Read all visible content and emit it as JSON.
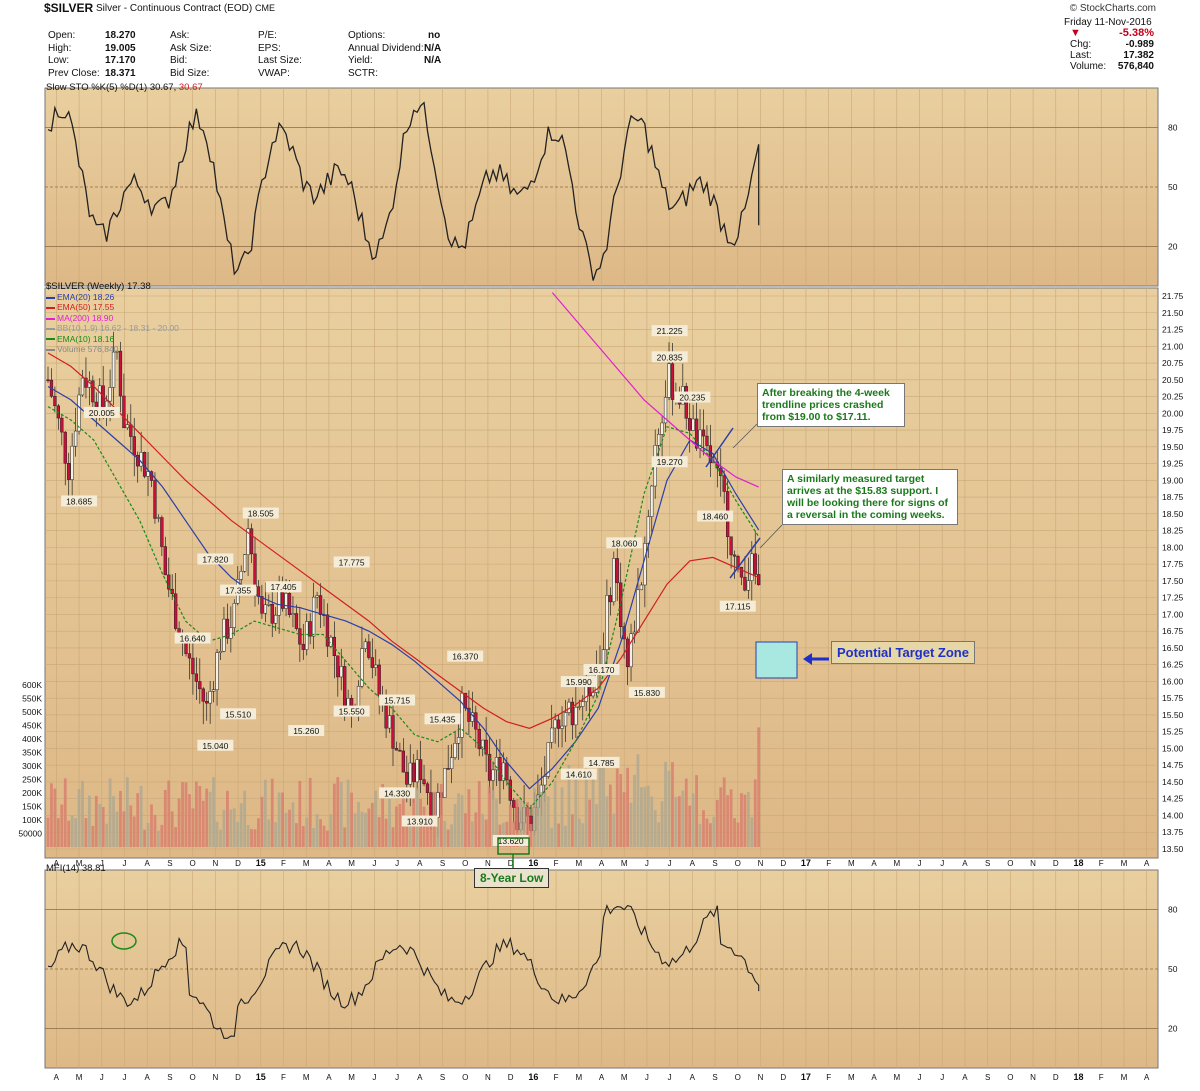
{
  "header": {
    "symbol": "$SILVER",
    "name": "Silver - Continuous Contract (EOD)",
    "exchange": "CME",
    "source": "© StockCharts.com"
  },
  "quote": {
    "rows": [
      [
        {
          "k": "Open:",
          "v": "18.270"
        },
        {
          "k": "Ask:",
          "v": ""
        },
        {
          "k": "P/E:",
          "v": ""
        },
        {
          "k": "Options:",
          "v": "no"
        }
      ],
      [
        {
          "k": "High:",
          "v": "19.005"
        },
        {
          "k": "Ask Size:",
          "v": ""
        },
        {
          "k": "EPS:",
          "v": ""
        },
        {
          "k": "Annual Dividend:",
          "v": "N/A"
        }
      ],
      [
        {
          "k": "Low:",
          "v": "17.170"
        },
        {
          "k": "Bid:",
          "v": ""
        },
        {
          "k": "Last Size:",
          "v": ""
        },
        {
          "k": "Yield:",
          "v": "N/A"
        }
      ],
      [
        {
          "k": "Prev Close:",
          "v": "18.371"
        },
        {
          "k": "Bid Size:",
          "v": ""
        },
        {
          "k": "VWAP:",
          "v": ""
        },
        {
          "k": "SCTR:",
          "v": ""
        }
      ]
    ]
  },
  "summary": {
    "date": "Friday 11-Nov-2016",
    "pct": "-5.38%",
    "chg_label": "Chg:",
    "chg": "-0.989",
    "last_label": "Last:",
    "last": "17.382",
    "vol_label": "Volume:",
    "vol": "576,840"
  },
  "colors": {
    "bg": "#deb887",
    "bg_light": "#e9cf9f",
    "up": "#f5f0e3",
    "down": "#c8103a",
    "ema20": "#2a3fa8",
    "ema50": "#d02020",
    "ma200": "#e020d0",
    "ema10": "#1a8a1a",
    "band": "#c8c0a8",
    "volume": "#e8a090",
    "vol_down": "#d8806e",
    "vol_up": "#b0a890",
    "ellipse": "#1a8a1a",
    "target": "#a8e8e0",
    "trend": "#2a3fa8"
  },
  "sto": {
    "title": "Slow STO %K(5) %D(1) 30.67,",
    "title_value": "30.67",
    "levels": [
      "80",
      "50",
      "20"
    ]
  },
  "main": {
    "title": "$SILVER (Weekly) 17.38",
    "legend": [
      {
        "label": "EMA(20) 18.26",
        "color": "#2a3fa8"
      },
      {
        "label": "EMA(50) 17.55",
        "color": "#d02020"
      },
      {
        "label": "MA(200) 18.90",
        "color": "#e020d0"
      },
      {
        "label": "BB(10,1.9) 16.62 - 18.31 - 20.00",
        "color": "#999999"
      },
      {
        "label": "EMA(10) 18.16",
        "color": "#1a8a1a"
      },
      {
        "label": "Volume 576,840",
        "color": "#888888"
      }
    ],
    "price_ticks": [
      "21.75",
      "21.50",
      "21.25",
      "21.00",
      "20.75",
      "20.50",
      "20.25",
      "20.00",
      "19.75",
      "19.50",
      "19.25",
      "19.00",
      "18.75",
      "18.50",
      "18.25",
      "18.00",
      "17.75",
      "17.50",
      "17.25",
      "17.00",
      "16.75",
      "16.50",
      "16.25",
      "16.00",
      "15.75",
      "15.50",
      "15.25",
      "15.00",
      "14.75",
      "14.50",
      "14.25",
      "14.00",
      "13.75",
      "13.50"
    ],
    "volume_ticks": [
      "600K",
      "550K",
      "500K",
      "450K",
      "400K",
      "350K",
      "300K",
      "250K",
      "200K",
      "150K",
      "100K",
      "50000"
    ],
    "months": [
      "A",
      "M",
      "J",
      "J",
      "A",
      "S",
      "O",
      "N",
      "D",
      "15",
      "F",
      "M",
      "A",
      "M",
      "J",
      "J",
      "A",
      "S",
      "O",
      "N",
      "D",
      "16",
      "F",
      "M",
      "A",
      "M",
      "J",
      "J",
      "A",
      "S",
      "O",
      "N",
      "D",
      "17",
      "F",
      "M",
      "A",
      "M",
      "J",
      "J",
      "A",
      "S",
      "O",
      "N",
      "D",
      "18",
      "F",
      "M",
      "A"
    ],
    "annotations": [
      "20.005",
      "18.685",
      "17.820",
      "18.505",
      "16.640",
      "17.355",
      "17.405",
      "17.775",
      "15.510",
      "15.040",
      "15.260",
      "15.550",
      "15.715",
      "16.370",
      "15.435",
      "14.330",
      "13.910",
      "13.620",
      "15.990",
      "16.170",
      "14.610",
      "14.785",
      "18.060",
      "15.830",
      "21.225",
      "20.835",
      "20.235",
      "19.270",
      "18.460",
      "17.115"
    ],
    "note1": "After breaking the 4-week trendline prices crashed from $19.00 to $17.11.",
    "note2": "A similarly measured target arrives at the $15.83 support. I will be looking there for signs of a reversal in the coming weeks.",
    "target_label": "Potential Target Zone",
    "low_label": "8-Year Low"
  },
  "mfi": {
    "title": "MFI(14) 38.81",
    "levels": [
      "80",
      "50",
      "20"
    ]
  },
  "chart_data": {
    "type": "line",
    "title": "$SILVER (Weekly) 17.38",
    "xlabel": "",
    "ylabel": "",
    "ylim": [
      13.5,
      21.75
    ],
    "annotations_map": [
      {
        "label": "20.005",
        "x": "2014-06",
        "y": 20.005
      },
      {
        "label": "18.685",
        "x": "2014-05",
        "y": 18.685
      },
      {
        "label": "17.820",
        "x": "2014-11",
        "y": 17.82
      },
      {
        "label": "18.505",
        "x": "2015-01",
        "y": 18.505
      },
      {
        "label": "16.640",
        "x": "2014-10",
        "y": 16.64
      },
      {
        "label": "17.355",
        "x": "2014-12",
        "y": 17.355
      },
      {
        "label": "17.405",
        "x": "2015-02",
        "y": 17.405
      },
      {
        "label": "17.775",
        "x": "2015-05",
        "y": 17.775
      },
      {
        "label": "15.510",
        "x": "2014-12",
        "y": 15.51
      },
      {
        "label": "15.040",
        "x": "2014-11",
        "y": 15.04
      },
      {
        "label": "15.260",
        "x": "2015-03",
        "y": 15.26
      },
      {
        "label": "15.550",
        "x": "2015-05",
        "y": 15.55
      },
      {
        "label": "15.715",
        "x": "2015-07",
        "y": 15.715
      },
      {
        "label": "16.370",
        "x": "2015-10",
        "y": 16.37
      },
      {
        "label": "15.435",
        "x": "2015-09",
        "y": 15.435
      },
      {
        "label": "14.330",
        "x": "2015-07",
        "y": 14.33
      },
      {
        "label": "13.910",
        "x": "2015-08",
        "y": 13.91
      },
      {
        "label": "13.620",
        "x": "2015-12",
        "y": 13.62
      },
      {
        "label": "15.990",
        "x": "2016-03",
        "y": 15.99
      },
      {
        "label": "16.170",
        "x": "2016-04",
        "y": 16.17
      },
      {
        "label": "14.610",
        "x": "2016-03",
        "y": 14.61
      },
      {
        "label": "14.785",
        "x": "2016-04",
        "y": 14.785
      },
      {
        "label": "18.060",
        "x": "2016-05",
        "y": 18.06
      },
      {
        "label": "15.830",
        "x": "2016-06",
        "y": 15.83
      },
      {
        "label": "21.225",
        "x": "2016-07",
        "y": 21.225
      },
      {
        "label": "20.835",
        "x": "2016-07",
        "y": 20.835
      },
      {
        "label": "20.235",
        "x": "2016-08",
        "y": 20.235
      },
      {
        "label": "19.270",
        "x": "2016-07",
        "y": 19.27
      },
      {
        "label": "18.460",
        "x": "2016-09",
        "y": 18.46
      },
      {
        "label": "17.115",
        "x": "2016-10",
        "y": 17.115
      }
    ],
    "series": [
      {
        "name": "EMA(20) 18.26",
        "color": "#2a3fa8",
        "values": [
          20.4,
          20.2,
          19.9,
          19.6,
          19.3,
          18.9,
          18.4,
          17.9,
          17.55,
          17.3,
          17.15,
          17.1,
          17.0,
          16.9,
          16.75,
          16.55,
          16.3,
          16.0,
          15.7,
          15.3,
          14.8,
          14.4,
          14.7,
          15.1,
          15.6,
          16.6,
          17.8,
          19.0,
          19.6,
          19.4,
          18.8,
          18.26
        ]
      },
      {
        "name": "EMA(50) 17.55",
        "color": "#d02020",
        "values": [
          20.9,
          20.7,
          20.4,
          20.05,
          19.7,
          19.35,
          19.0,
          18.7,
          18.4,
          18.15,
          17.9,
          17.65,
          17.4,
          17.15,
          16.9,
          16.6,
          16.35,
          16.1,
          15.85,
          15.6,
          15.4,
          15.3,
          15.45,
          15.65,
          15.9,
          16.35,
          16.9,
          17.45,
          17.8,
          17.85,
          17.7,
          17.55
        ]
      },
      {
        "name": "MA(200) 18.90",
        "color": "#e020d0",
        "values": [
          null,
          null,
          null,
          null,
          null,
          null,
          null,
          null,
          null,
          null,
          null,
          null,
          null,
          null,
          null,
          null,
          null,
          null,
          null,
          null,
          null,
          null,
          21.8,
          21.4,
          21.0,
          20.6,
          20.2,
          19.9,
          19.6,
          19.3,
          19.05,
          18.9
        ]
      },
      {
        "name": "EMA(10) 18.16",
        "color": "#1a8a1a",
        "values": [
          20.1,
          19.9,
          19.6,
          19.0,
          18.4,
          17.6,
          16.9,
          16.6,
          16.7,
          16.9,
          16.8,
          16.7,
          16.7,
          16.3,
          15.9,
          15.6,
          15.2,
          15.1,
          15.3,
          15.0,
          14.5,
          14.1,
          14.5,
          15.1,
          15.8,
          17.2,
          18.8,
          19.8,
          19.7,
          19.3,
          18.7,
          18.16
        ]
      }
    ],
    "volume_ylim": [
      0,
      600000
    ],
    "last_volume": 576840,
    "sto_ylim": [
      0,
      100
    ],
    "sto_last": 30.67,
    "mfi_ylim": [
      0,
      100
    ],
    "mfi_last": 38.81
  }
}
